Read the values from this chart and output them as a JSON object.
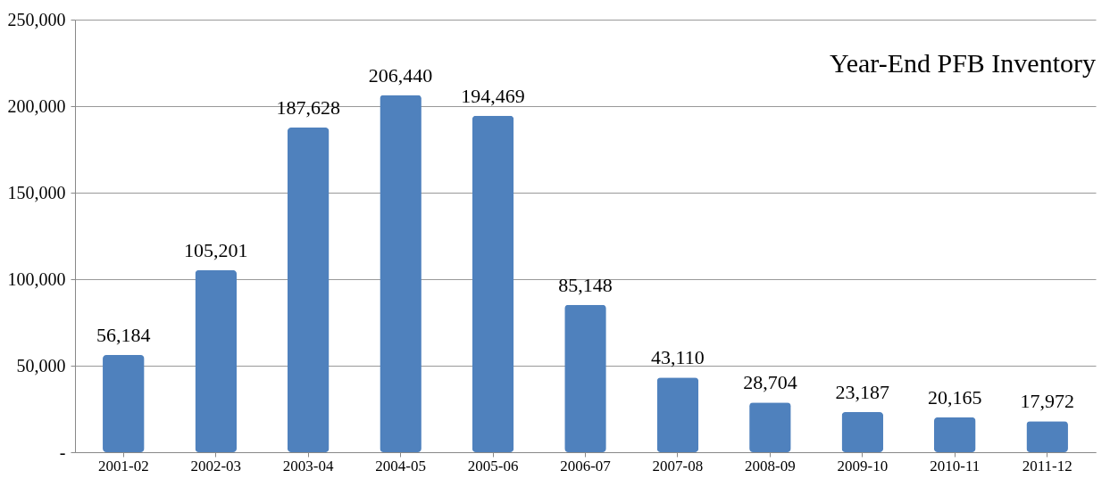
{
  "chart_data": {
    "type": "bar",
    "title": "Year-End PFB Inventory",
    "categories": [
      "2001-02",
      "2002-03",
      "2003-04",
      "2004-05",
      "2005-06",
      "2006-07",
      "2007-08",
      "2008-09",
      "2009-10",
      "2010-11",
      "2011-12"
    ],
    "values": [
      56184,
      105201,
      187628,
      206440,
      194469,
      85148,
      43110,
      28704,
      23187,
      20165,
      17972
    ],
    "color": "#4f81bd",
    "ylim": [
      0,
      250000
    ],
    "yticks": [
      {
        "value": 0,
        "label": "-"
      },
      {
        "value": 50000,
        "label": "50,000"
      },
      {
        "value": 100000,
        "label": "100,000"
      },
      {
        "value": 150000,
        "label": "150,000"
      },
      {
        "value": 200000,
        "label": "200,000"
      },
      {
        "value": 250000,
        "label": "250,000"
      }
    ],
    "value_labels": [
      "56,184",
      "105,201",
      "187,628",
      "206,440",
      "194,469",
      "85,148",
      "43,110",
      "28,704",
      "23,187",
      "20,165",
      "17,972"
    ],
    "grid": "y"
  }
}
